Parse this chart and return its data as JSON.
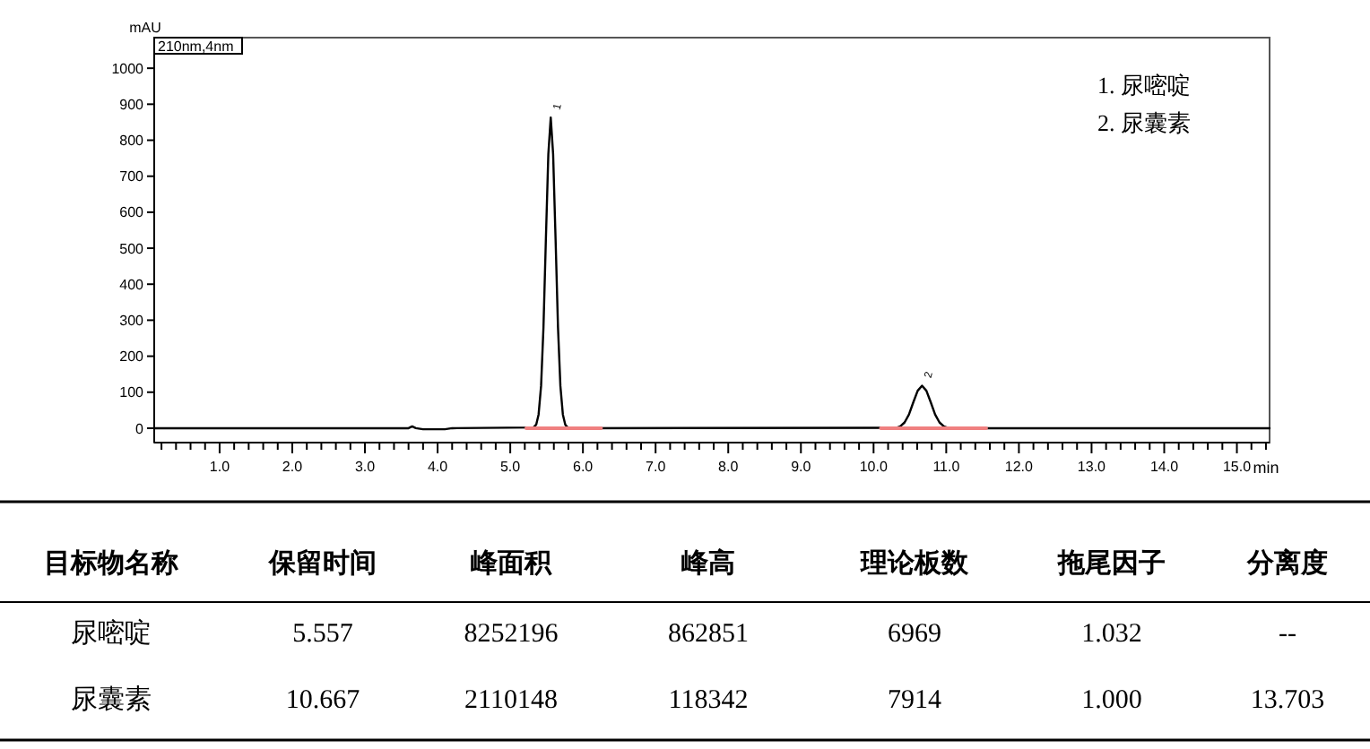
{
  "chart_data": [
    {
      "type": "line",
      "xlabel": "min",
      "ylabel": "mAU",
      "xlim": [
        0.1,
        15.45
      ],
      "ylim": [
        -40,
        1085
      ],
      "xticks": [
        {
          "value": 0.2,
          "label": null
        },
        {
          "value": 0.4,
          "label": null
        },
        {
          "value": 0.6,
          "label": null
        },
        {
          "value": 0.8,
          "label": null
        },
        {
          "value": 1,
          "label": "1.0"
        },
        {
          "value": 1.2,
          "label": null
        },
        {
          "value": 1.4,
          "label": null
        },
        {
          "value": 1.6,
          "label": null
        },
        {
          "value": 1.8,
          "label": null
        },
        {
          "value": 2,
          "label": "2.0"
        },
        {
          "value": 2.2,
          "label": null
        },
        {
          "value": 2.4,
          "label": null
        },
        {
          "value": 2.6,
          "label": null
        },
        {
          "value": 2.8,
          "label": null
        },
        {
          "value": 3,
          "label": "3.0"
        },
        {
          "value": 3.2,
          "label": null
        },
        {
          "value": 3.4,
          "label": null
        },
        {
          "value": 3.6,
          "label": null
        },
        {
          "value": 3.8,
          "label": null
        },
        {
          "value": 4,
          "label": "4.0"
        },
        {
          "value": 4.2,
          "label": null
        },
        {
          "value": 4.4,
          "label": null
        },
        {
          "value": 4.6,
          "label": null
        },
        {
          "value": 4.8,
          "label": null
        },
        {
          "value": 5,
          "label": "5.0"
        },
        {
          "value": 5.2,
          "label": null
        },
        {
          "value": 5.4,
          "label": null
        },
        {
          "value": 5.6,
          "label": null
        },
        {
          "value": 5.8,
          "label": null
        },
        {
          "value": 6,
          "label": "6.0"
        },
        {
          "value": 6.2,
          "label": null
        },
        {
          "value": 6.4,
          "label": null
        },
        {
          "value": 6.6,
          "label": null
        },
        {
          "value": 6.8,
          "label": null
        },
        {
          "value": 7,
          "label": "7.0"
        },
        {
          "value": 7.2,
          "label": null
        },
        {
          "value": 7.4,
          "label": null
        },
        {
          "value": 7.6,
          "label": null
        },
        {
          "value": 7.8,
          "label": null
        },
        {
          "value": 8,
          "label": "8.0"
        },
        {
          "value": 8.2,
          "label": null
        },
        {
          "value": 8.4,
          "label": null
        },
        {
          "value": 8.6,
          "label": null
        },
        {
          "value": 8.8,
          "label": null
        },
        {
          "value": 9,
          "label": "9.0"
        },
        {
          "value": 9.2,
          "label": null
        },
        {
          "value": 9.4,
          "label": null
        },
        {
          "value": 9.6,
          "label": null
        },
        {
          "value": 9.8,
          "label": null
        },
        {
          "value": 10,
          "label": "10.0"
        },
        {
          "value": 10.2,
          "label": null
        },
        {
          "value": 10.4,
          "label": null
        },
        {
          "value": 10.6,
          "label": null
        },
        {
          "value": 10.8,
          "label": null
        },
        {
          "value": 11,
          "label": "11.0"
        },
        {
          "value": 11.2,
          "label": null
        },
        {
          "value": 11.4,
          "label": null
        },
        {
          "value": 11.6,
          "label": null
        },
        {
          "value": 11.8,
          "label": null
        },
        {
          "value": 12,
          "label": "12.0"
        },
        {
          "value": 12.2,
          "label": null
        },
        {
          "value": 12.4,
          "label": null
        },
        {
          "value": 12.6,
          "label": null
        },
        {
          "value": 12.8,
          "label": null
        },
        {
          "value": 13,
          "label": "13.0"
        },
        {
          "value": 13.2,
          "label": null
        },
        {
          "value": 13.4,
          "label": null
        },
        {
          "value": 13.6,
          "label": null
        },
        {
          "value": 13.8,
          "label": null
        },
        {
          "value": 14,
          "label": "14.0"
        },
        {
          "value": 14.2,
          "label": null
        },
        {
          "value": 14.4,
          "label": null
        },
        {
          "value": 14.6,
          "label": null
        },
        {
          "value": 14.8,
          "label": null
        },
        {
          "value": 15,
          "label": "15.0"
        },
        {
          "value": 15.2,
          "label": null
        },
        {
          "value": 15.4,
          "label": null
        }
      ],
      "yticks": [
        0,
        100,
        200,
        300,
        400,
        500,
        600,
        700,
        800,
        900,
        1000
      ],
      "marker": "none",
      "line_style": "solid",
      "series": [
        {
          "color": "#000000",
          "x": [
            0.1,
            3.6,
            3.65,
            3.7,
            3.8,
            4.1,
            4.2,
            5.32,
            5.357,
            5.39,
            5.424,
            5.457,
            5.49,
            5.524,
            5.557,
            5.59,
            5.624,
            5.657,
            5.69,
            5.724,
            5.757,
            5.79,
            5.85,
            10.31,
            10.367,
            10.427,
            10.487,
            10.547,
            10.607,
            10.667,
            10.727,
            10.787,
            10.847,
            10.907,
            10.967,
            11.027,
            11.1,
            15.45
          ],
          "values": [
            0,
            0,
            5,
            0,
            -3,
            -3,
            0,
            2,
            10,
            38,
            117,
            280,
            523,
            761,
            863,
            761,
            523,
            280,
            117,
            38,
            10,
            2,
            0,
            1,
            5,
            16,
            38,
            72,
            104,
            118,
            104,
            72,
            38,
            16,
            5,
            1,
            0,
            0
          ]
        },
        {
          "color": "#f08080",
          "x": [
            5.22,
            6.25
          ],
          "values": [
            0,
            0
          ]
        },
        {
          "color": "#f08080",
          "x": [
            10.1,
            11.55
          ],
          "values": [
            0,
            0
          ]
        }
      ],
      "annotations": [
        "210nm,4nm",
        "1. 尿嘧啶",
        "2. 尿囊素",
        {
          "text": "1",
          "x": 5.557,
          "y": 863
        },
        {
          "text": "2",
          "x": 10.667,
          "y": 118
        }
      ]
    },
    {
      "type": "other",
      "categories": [
        "目标物名称",
        "保留时间",
        "峰面积",
        "峰高",
        "理论板数",
        "拖尾因子",
        "分离度"
      ],
      "annotations": [
        "尿嘧啶",
        "5.557",
        "8252196",
        "862851",
        "6969",
        "1.032",
        "--",
        "尿囊素",
        "10.667",
        "2110148",
        "118342",
        "7914",
        "1.000",
        "13.703"
      ]
    }
  ]
}
